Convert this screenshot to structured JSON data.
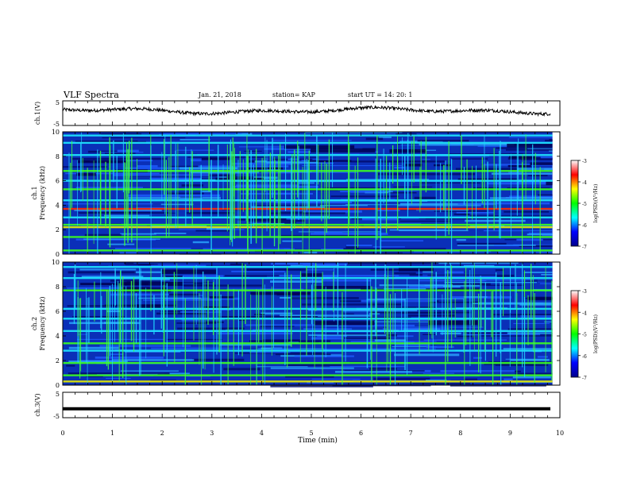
{
  "header": {
    "title": "VLF Spectra",
    "date": "Jan. 21, 2018",
    "station": "station= KAP",
    "start": "start  UT =   14: 20: 1"
  },
  "chart_data": [
    {
      "type": "line",
      "name": "ch1-waveform",
      "ylabel": "ch.1(V)",
      "ylim": [
        -5,
        5
      ],
      "yticks": [
        "5",
        "-5"
      ],
      "xlim": [
        0,
        10
      ],
      "baseline": 1.0,
      "amplitude": 1.2
    },
    {
      "type": "heatmap",
      "name": "ch1-spectrogram",
      "ylabel_top": "ch.1",
      "ylabel": "Frequency (kHz)",
      "ylim": [
        0,
        10
      ],
      "yticks": [
        "0",
        "2",
        "4",
        "6",
        "8",
        "10"
      ],
      "xlim": [
        0,
        9.85
      ],
      "bands": [
        {
          "f": 0.3,
          "level": "green"
        },
        {
          "f": 1.4,
          "level": "green"
        },
        {
          "f": 2.2,
          "level": "yellow"
        },
        {
          "f": 2.4,
          "level": "green"
        },
        {
          "f": 3.0,
          "level": "cyan"
        },
        {
          "f": 3.7,
          "level": "red"
        },
        {
          "f": 4.4,
          "level": "cyan"
        },
        {
          "f": 5.3,
          "level": "green"
        },
        {
          "f": 6.0,
          "level": "cyan"
        },
        {
          "f": 6.8,
          "level": "green"
        },
        {
          "f": 8.1,
          "level": "cyan"
        },
        {
          "f": 9.1,
          "level": "cyan"
        },
        {
          "f": 9.7,
          "level": "cyan"
        }
      ],
      "colorbar": {
        "label": "log(PSD)(V²/Hz)",
        "ticks": [
          "-3",
          "-4",
          "-5",
          "-6",
          "-7"
        ],
        "colors": [
          "#ffffff",
          "#ff0000",
          "#ffff00",
          "#00ff00",
          "#00ffff",
          "#0000ff",
          "#00008b"
        ]
      }
    },
    {
      "type": "heatmap",
      "name": "ch2-spectrogram",
      "ylabel_top": "ch.2",
      "ylabel": "Frequency (kHz)",
      "ylim": [
        0,
        10
      ],
      "yticks": [
        "0",
        "2",
        "4",
        "6",
        "8",
        "10"
      ],
      "xlim": [
        0,
        9.85
      ],
      "bands": [
        {
          "f": 0.3,
          "level": "yellow"
        },
        {
          "f": 0.8,
          "level": "green"
        },
        {
          "f": 1.8,
          "level": "green"
        },
        {
          "f": 2.8,
          "level": "cyan"
        },
        {
          "f": 3.4,
          "level": "green"
        },
        {
          "f": 4.4,
          "level": "cyan"
        },
        {
          "f": 5.4,
          "level": "cyan"
        },
        {
          "f": 6.2,
          "level": "cyan"
        },
        {
          "f": 7.7,
          "level": "green"
        },
        {
          "f": 8.7,
          "level": "cyan"
        },
        {
          "f": 9.6,
          "level": "cyan"
        }
      ],
      "colorbar": {
        "label": "log(PSD)(V²/Hz)",
        "ticks": [
          "-3",
          "-4",
          "-5",
          "-6",
          "-7"
        ],
        "colors": [
          "#ffffff",
          "#ff0000",
          "#ffff00",
          "#00ff00",
          "#00ffff",
          "#0000ff",
          "#00008b"
        ]
      }
    },
    {
      "type": "line",
      "name": "ch3-waveform",
      "ylabel": "ch.3(V)",
      "ylim": [
        -5,
        5
      ],
      "yticks": [
        "5",
        "-5"
      ],
      "xlim": [
        0,
        10
      ],
      "baseline": -1.5,
      "amplitude": 0.0
    }
  ],
  "xaxis": {
    "label": "Time  (min)",
    "ticks": [
      "0",
      "1",
      "2",
      "3",
      "4",
      "5",
      "6",
      "7",
      "8",
      "9",
      "10"
    ]
  }
}
